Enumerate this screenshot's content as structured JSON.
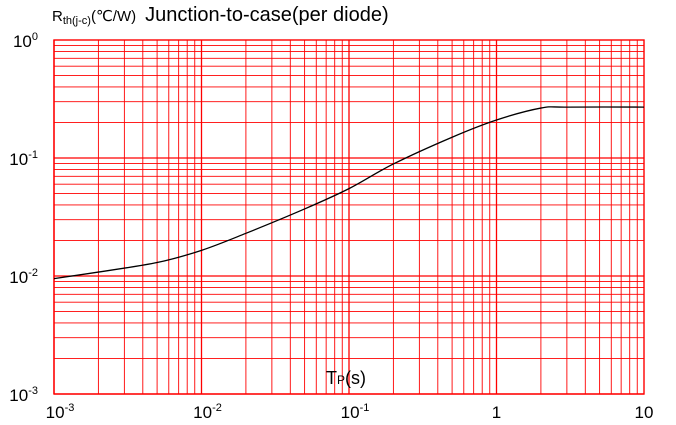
{
  "chart_data": {
    "type": "line",
    "title": "Junction-to-case(per diode)",
    "ylabel": {
      "main": "R",
      "subscript": "th(j-c)",
      "unit": "(℃/W)"
    },
    "xlabel": {
      "main": "T",
      "subscript": "P",
      "unit": "(s)"
    },
    "x_scale": "log",
    "y_scale": "log",
    "xlim": [
      0.001,
      10
    ],
    "ylim": [
      0.001,
      1
    ],
    "grid": true,
    "grid_color": "#ff0000",
    "line_color": "#000000",
    "x_ticks": [
      {
        "base": "10",
        "exp": "-3"
      },
      {
        "base": "10",
        "exp": "-2"
      },
      {
        "base": "10",
        "exp": "-1"
      },
      {
        "base": "1",
        "exp": ""
      },
      {
        "base": "10",
        "exp": ""
      }
    ],
    "y_ticks": [
      {
        "base": "10",
        "exp": "0"
      },
      {
        "base": "10",
        "exp": "-1"
      },
      {
        "base": "10",
        "exp": "-2"
      },
      {
        "base": "10",
        "exp": "-3"
      }
    ],
    "series": [
      {
        "x": [
          0.001,
          0.002,
          0.005,
          0.01,
          0.02,
          0.05,
          0.1,
          0.2,
          0.5,
          1,
          2,
          3,
          10
        ],
        "y": [
          0.0095,
          0.0108,
          0.013,
          0.0165,
          0.023,
          0.037,
          0.055,
          0.089,
          0.15,
          0.21,
          0.265,
          0.27,
          0.27
        ]
      }
    ]
  }
}
